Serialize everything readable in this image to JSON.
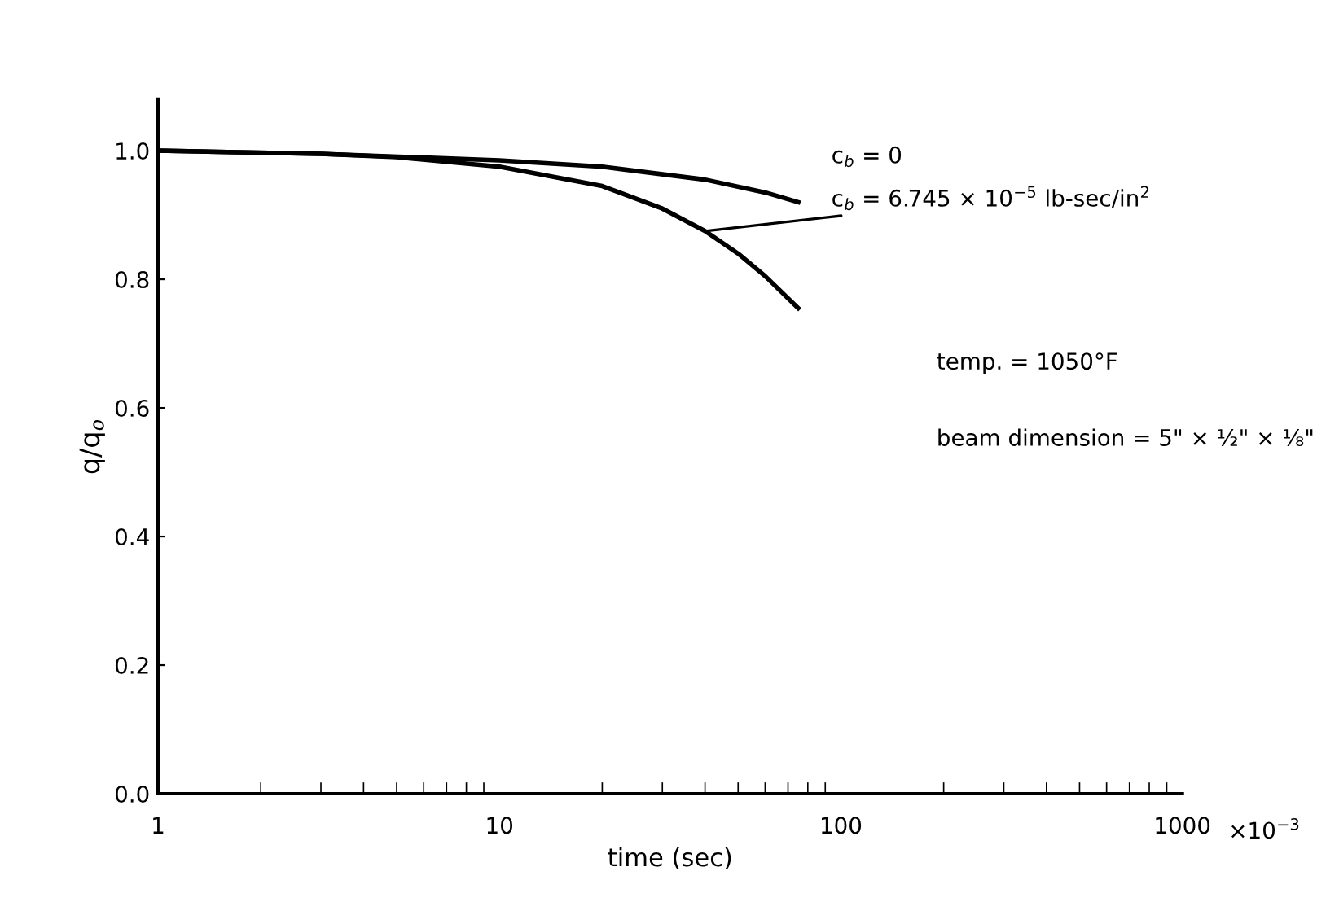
{
  "chart_data": {
    "type": "line",
    "xlabel": "time (sec)",
    "ylabel": "q/q$_{o}$",
    "log": "x",
    "xlim": [
      1,
      1000
    ],
    "xticks": [
      1,
      10,
      100,
      1000
    ],
    "ylim": [
      0,
      1.08
    ],
    "yticks": [
      {
        "value": 0,
        "label": "0.0"
      },
      {
        "value": 0.2,
        "label": "0.2"
      },
      {
        "value": 0.4,
        "label": "0.4"
      },
      {
        "value": 0.6,
        "label": "0.6"
      },
      {
        "value": 0.8,
        "label": "0.8"
      },
      {
        "value": 1.0,
        "label": "1.0"
      }
    ],
    "grid": false,
    "legend": false,
    "marker": "none",
    "line_style": "solid",
    "series": [
      {
        "name": "c$_{b}$ = 0",
        "color": "#000000",
        "x": [
          1,
          3,
          10,
          20,
          40,
          60,
          75
        ],
        "values": [
          1.0,
          0.995,
          0.985,
          0.975,
          0.955,
          0.935,
          0.92
        ]
      },
      {
        "name": "c$_{b}$ = 6.745 × 10$^{−5}$ lb-sec/in$^{2}$",
        "color": "#000000",
        "x": [
          1,
          3,
          5,
          10,
          20,
          30,
          40,
          50,
          60,
          75
        ],
        "values": [
          1.0,
          0.995,
          0.99,
          0.975,
          0.945,
          0.91,
          0.875,
          0.84,
          0.805,
          0.755
        ]
      }
    ],
    "annotations": [
      "×10$^{−3}$",
      "temp. = 1050°F",
      "beam dimension = 5\" × ½\" × ⅛\""
    ]
  }
}
